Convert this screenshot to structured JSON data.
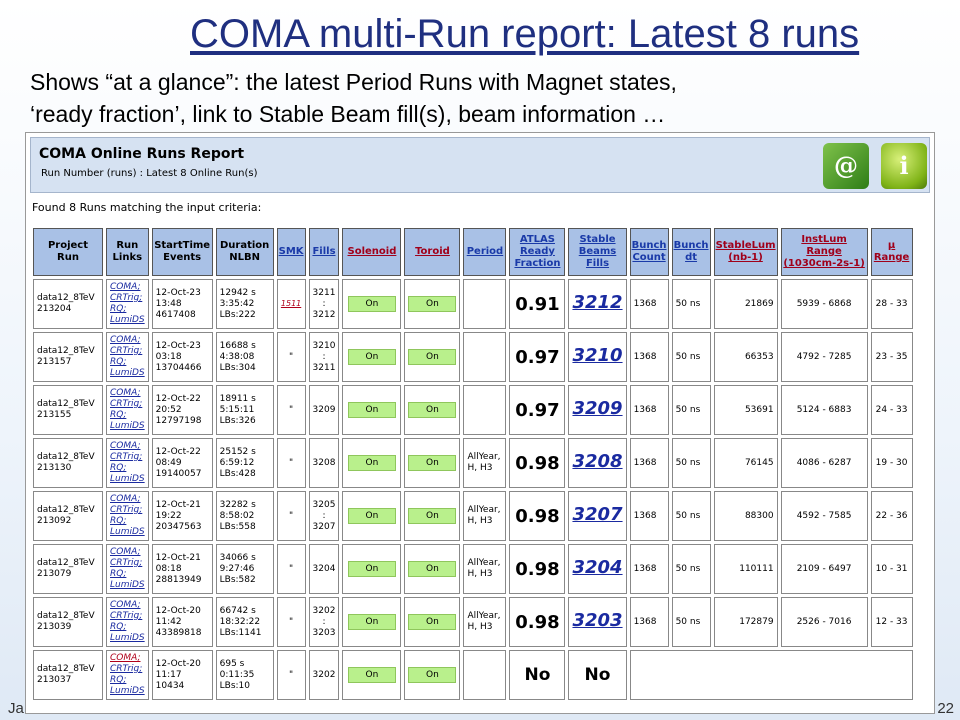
{
  "slide": {
    "title": "COMA multi-Run report: Latest 8 runs",
    "subtitle_line1": "Shows “at a glance”:  the latest Period Runs with Magnet states,",
    "subtitle_line2": "‘ready fraction’, link to Stable Beam fill(s), beam information …",
    "footer_left": "Ja",
    "footer_right": "22"
  },
  "report": {
    "title": "COMA Online Runs Report",
    "subtitle": "Run Number (runs) : Latest 8 Online Run(s)",
    "found_text": "Found 8 Runs matching the input criteria:",
    "icons": [
      "email-book-icon",
      "info-icon"
    ]
  },
  "columns": [
    {
      "label": "Project\nRun",
      "style": "plain"
    },
    {
      "label": "Run\nLinks",
      "style": "plain"
    },
    {
      "label": "StartTime\nEvents",
      "style": "plain"
    },
    {
      "label": "Duration\nNLBN",
      "style": "plain"
    },
    {
      "label": "SMK",
      "style": "lnk"
    },
    {
      "label": "Fills",
      "style": "lnk"
    },
    {
      "label": "Solenoid",
      "style": "red"
    },
    {
      "label": "Toroid",
      "style": "red"
    },
    {
      "label": "Period",
      "style": "lnk"
    },
    {
      "label": "ATLAS\nReady\nFraction",
      "style": "lnk"
    },
    {
      "label": "Stable\nBeams\nFills",
      "style": "lnk"
    },
    {
      "label": "Bunch\nCount",
      "style": "lnk"
    },
    {
      "label": "Bunch\ndt",
      "style": "lnk"
    },
    {
      "label": "StableLum\n(nb-1)",
      "style": "red"
    },
    {
      "label": "InstLum\nRange\n(1030cm-2s-1)",
      "style": "red"
    },
    {
      "label": "μ\nRange",
      "style": "red"
    }
  ],
  "rows": [
    {
      "project": "data12_8TeV",
      "run": "213204",
      "links": [
        "COMA;",
        "CRTrig;",
        "RQ;",
        "LumiDS"
      ],
      "coma_red": false,
      "date": "12-Oct-23",
      "time": "13:48",
      "events": "4617408",
      "dur_s": "12942 s",
      "dur_hms": "3:35:42",
      "lbs": "LBs:222",
      "smk": "1511",
      "fills": [
        "3211",
        ":",
        "3212"
      ],
      "solenoid": "On",
      "toroid": "On",
      "period": [],
      "ready": "0.91",
      "stable_fill": "3212",
      "bunch_count": "1368",
      "bunch_dt": "50 ns",
      "stable_lum": "21869",
      "inst_lum": "5939 - 6868",
      "mu": "28 - 33"
    },
    {
      "project": "data12_8TeV",
      "run": "213157",
      "links": [
        "COMA;",
        "CRTrig;",
        "RQ;",
        "LumiDS"
      ],
      "coma_red": false,
      "date": "12-Oct-23",
      "time": "03:18",
      "events": "13704466",
      "dur_s": "16688 s",
      "dur_hms": "4:38:08",
      "lbs": "LBs:304",
      "smk": "\"",
      "fills": [
        "3210",
        ":",
        "3211"
      ],
      "solenoid": "On",
      "toroid": "On",
      "period": [],
      "ready": "0.97",
      "stable_fill": "3210",
      "bunch_count": "1368",
      "bunch_dt": "50 ns",
      "stable_lum": "66353",
      "inst_lum": "4792 - 7285",
      "mu": "23 - 35"
    },
    {
      "project": "data12_8TeV",
      "run": "213155",
      "links": [
        "COMA;",
        "CRTrig;",
        "RQ;",
        "LumiDS"
      ],
      "coma_red": false,
      "date": "12-Oct-22",
      "time": "20:52",
      "events": "12797198",
      "dur_s": "18911 s",
      "dur_hms": "5:15:11",
      "lbs": "LBs:326",
      "smk": "\"",
      "fills": [
        "3209"
      ],
      "solenoid": "On",
      "toroid": "On",
      "period": [],
      "ready": "0.97",
      "stable_fill": "3209",
      "bunch_count": "1368",
      "bunch_dt": "50 ns",
      "stable_lum": "53691",
      "inst_lum": "5124 - 6883",
      "mu": "24 - 33"
    },
    {
      "project": "data12_8TeV",
      "run": "213130",
      "links": [
        "COMA;",
        "CRTrig;",
        "RQ;",
        "LumiDS"
      ],
      "coma_red": false,
      "date": "12-Oct-22",
      "time": "08:49",
      "events": "19140057",
      "dur_s": "25152 s",
      "dur_hms": "6:59:12",
      "lbs": "LBs:428",
      "smk": "\"",
      "fills": [
        "3208"
      ],
      "solenoid": "On",
      "toroid": "On",
      "period": [
        "AllYear,",
        "H, H3"
      ],
      "ready": "0.98",
      "stable_fill": "3208",
      "bunch_count": "1368",
      "bunch_dt": "50 ns",
      "stable_lum": "76145",
      "inst_lum": "4086 - 6287",
      "mu": "19 - 30"
    },
    {
      "project": "data12_8TeV",
      "run": "213092",
      "links": [
        "COMA;",
        "CRTrig;",
        "RQ;",
        "LumiDS"
      ],
      "coma_red": false,
      "date": "12-Oct-21",
      "time": "19:22",
      "events": "20347563",
      "dur_s": "32282 s",
      "dur_hms": "8:58:02",
      "lbs": "LBs:558",
      "smk": "\"",
      "fills": [
        "3205",
        ":",
        "3207"
      ],
      "solenoid": "On",
      "toroid": "On",
      "period": [
        "AllYear,",
        "H, H3"
      ],
      "ready": "0.98",
      "stable_fill": "3207",
      "bunch_count": "1368",
      "bunch_dt": "50 ns",
      "stable_lum": "88300",
      "inst_lum": "4592 - 7585",
      "mu": "22 - 36"
    },
    {
      "project": "data12_8TeV",
      "run": "213079",
      "links": [
        "COMA;",
        "CRTrig;",
        "RQ;",
        "LumiDS"
      ],
      "coma_red": false,
      "date": "12-Oct-21",
      "time": "08:18",
      "events": "28813949",
      "dur_s": "34066 s",
      "dur_hms": "9:27:46",
      "lbs": "LBs:582",
      "smk": "\"",
      "fills": [
        "3204"
      ],
      "solenoid": "On",
      "toroid": "On",
      "period": [
        "AllYear,",
        "H, H3"
      ],
      "ready": "0.98",
      "stable_fill": "3204",
      "bunch_count": "1368",
      "bunch_dt": "50 ns",
      "stable_lum": "110111",
      "inst_lum": "2109 - 6497",
      "mu": "10 - 31"
    },
    {
      "project": "data12_8TeV",
      "run": "213039",
      "links": [
        "COMA;",
        "CRTrig;",
        "RQ;",
        "LumiDS"
      ],
      "coma_red": false,
      "date": "12-Oct-20",
      "time": "11:42",
      "events": "43389818",
      "dur_s": "66742 s",
      "dur_hms": "18:32:22",
      "lbs": "LBs:1141",
      "smk": "\"",
      "fills": [
        "3202",
        ":",
        "3203"
      ],
      "solenoid": "On",
      "toroid": "On",
      "period": [
        "AllYear,",
        "H, H3"
      ],
      "ready": "0.98",
      "stable_fill": "3203",
      "bunch_count": "1368",
      "bunch_dt": "50 ns",
      "stable_lum": "172879",
      "inst_lum": "2526 - 7016",
      "mu": "12 - 33"
    },
    {
      "project": "data12_8TeV",
      "run": "213037",
      "links": [
        "COMA;",
        "CRTrig;",
        "RQ;",
        "LumiDS"
      ],
      "coma_red": true,
      "date": "12-Oct-20",
      "time": "11:17",
      "events": "10434",
      "dur_s": "695 s",
      "dur_hms": "0:11:35",
      "lbs": "LBs:10",
      "smk": "\"",
      "fills": [
        "3202"
      ],
      "solenoid": "On",
      "toroid": "On",
      "period": [],
      "ready": "No",
      "stable_fill": "No",
      "bunch_count": "",
      "bunch_dt": "",
      "stable_lum": "",
      "inst_lum": "",
      "mu": ""
    }
  ],
  "colors": {
    "header_bg": "#a9c1e6",
    "ready_green": "#a8f07c",
    "on_green": "#b9f08c",
    "title_blue": "#1f2f80",
    "link_red": "#b0001a"
  }
}
